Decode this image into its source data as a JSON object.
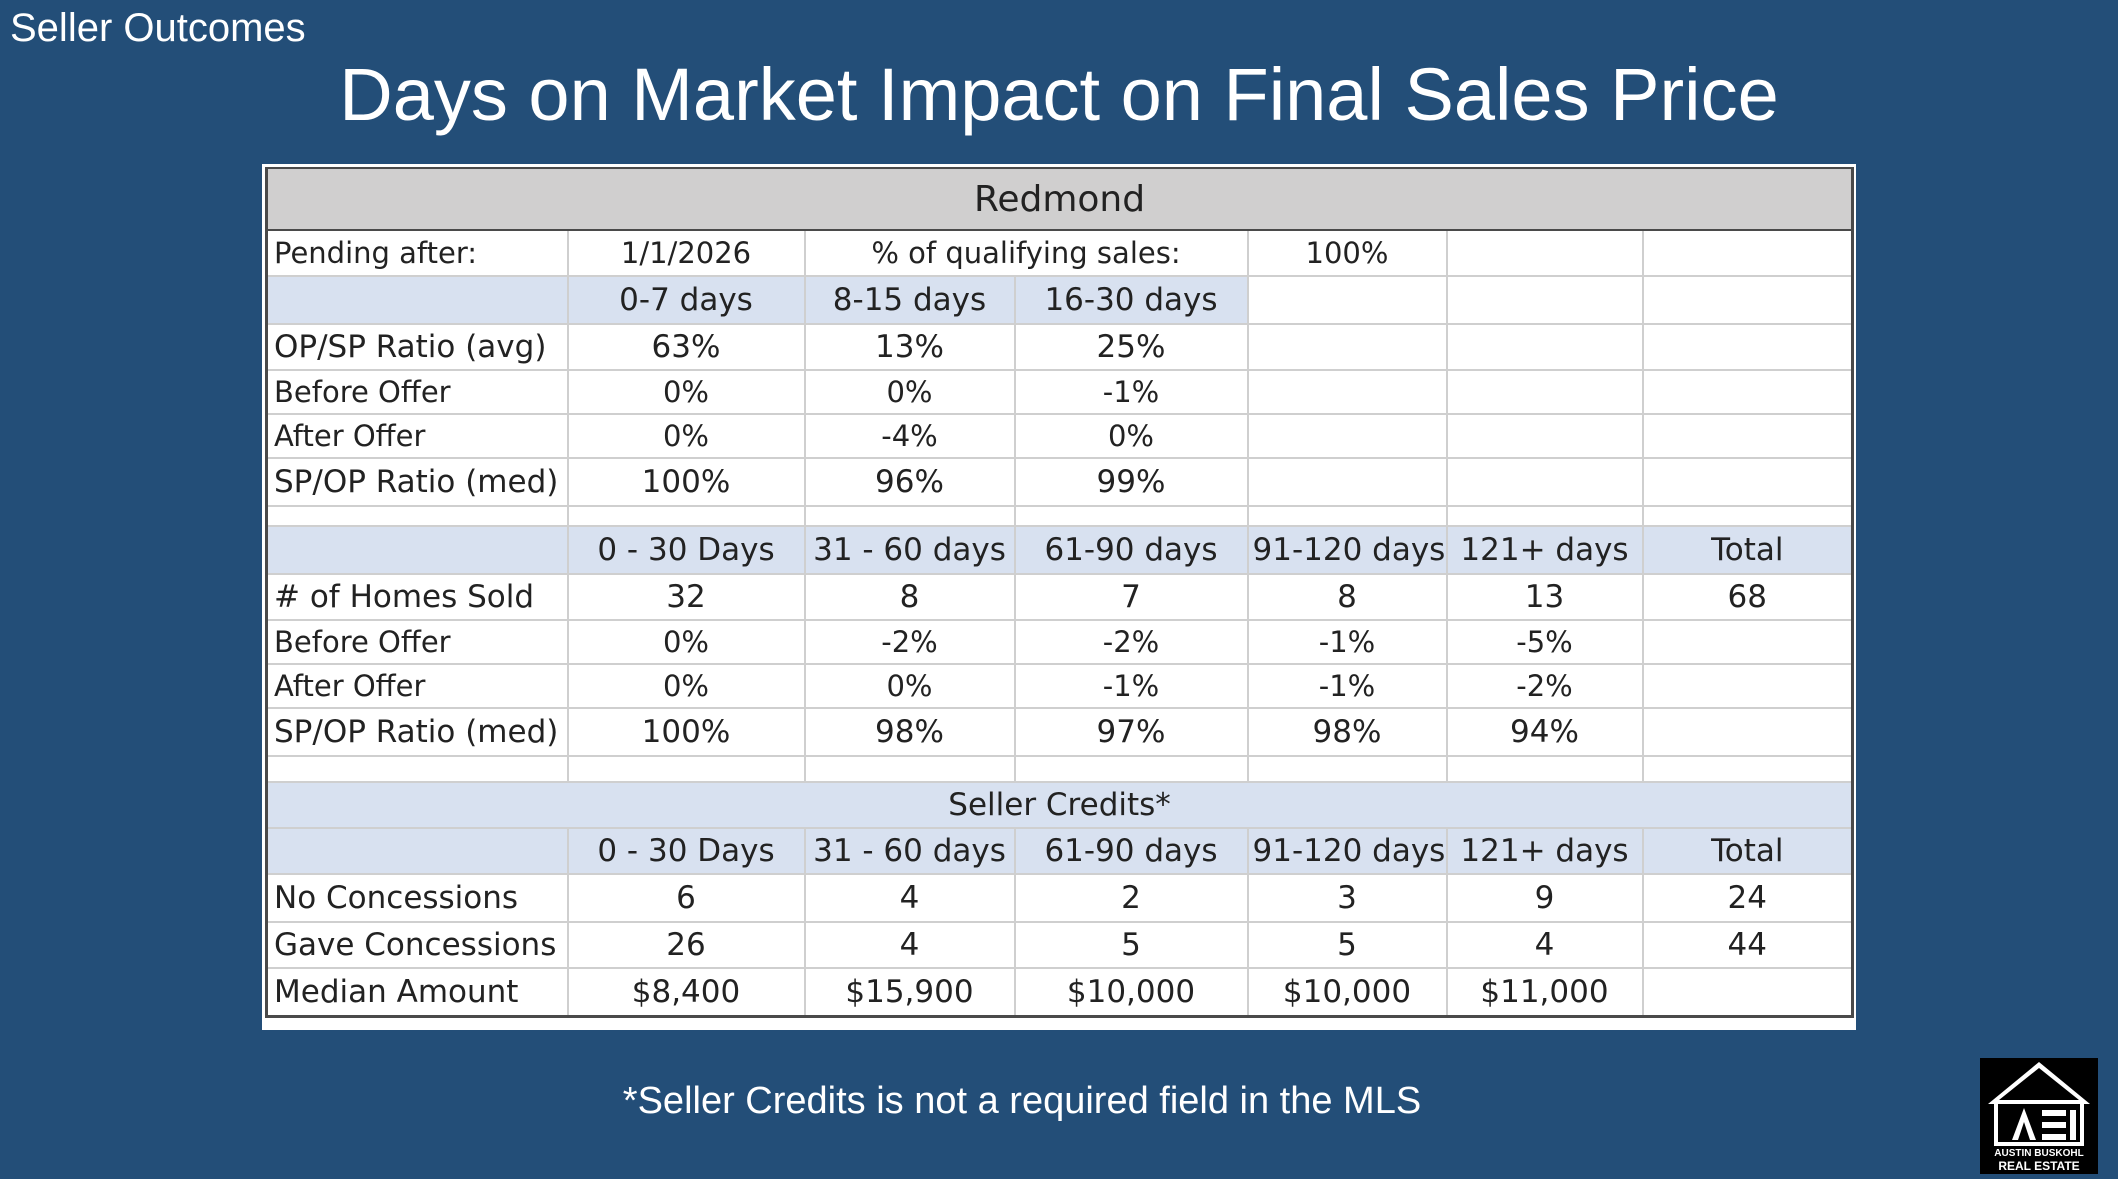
{
  "header": {
    "section_label": "Seller Outcomes",
    "title": "Days on Market Impact on Final Sales Price"
  },
  "table": {
    "title": "Redmond",
    "pending_label": "Pending after:",
    "pending_date": "1/1/2026",
    "qualifying_label": "% of qualifying sales:",
    "qualifying_value": "100%",
    "early_headers": [
      "0-7 days",
      "8-15 days",
      "16-30 days"
    ],
    "early_rows": [
      {
        "label": "OP/SP Ratio (avg)",
        "values": [
          "63%",
          "13%",
          "25%"
        ]
      },
      {
        "label": "Before Offer",
        "values": [
          "0%",
          "0%",
          "-1%"
        ]
      },
      {
        "label": "After Offer",
        "values": [
          "0%",
          "-4%",
          "0%"
        ]
      },
      {
        "label": "SP/OP Ratio (med)",
        "values": [
          "100%",
          "96%",
          "99%"
        ]
      }
    ],
    "range_headers": [
      "0 - 30 Days",
      "31 - 60 days",
      "61-90 days",
      "91-120 days",
      "121+ days",
      "Total"
    ],
    "range_rows": [
      {
        "label": "# of Homes Sold",
        "values": [
          "32",
          "8",
          "7",
          "8",
          "13",
          "68"
        ]
      },
      {
        "label": "Before Offer",
        "values": [
          "0%",
          "-2%",
          "-2%",
          "-1%",
          "-5%",
          ""
        ]
      },
      {
        "label": "After Offer",
        "values": [
          "0%",
          "0%",
          "-1%",
          "-1%",
          "-2%",
          ""
        ]
      },
      {
        "label": "SP/OP Ratio (med)",
        "values": [
          "100%",
          "98%",
          "97%",
          "98%",
          "94%",
          ""
        ]
      }
    ],
    "credits_title": "Seller Credits*",
    "credits_headers": [
      "0 - 30 Days",
      "31 - 60 days",
      "61-90 days",
      "91-120 days",
      "121+ days",
      "Total"
    ],
    "credits_rows": [
      {
        "label": "No Concessions",
        "values": [
          "6",
          "4",
          "2",
          "3",
          "9",
          "24"
        ]
      },
      {
        "label": "Gave Concessions",
        "values": [
          "26",
          "4",
          "5",
          "5",
          "4",
          "44"
        ]
      },
      {
        "label": "Median Amount",
        "values": [
          "$8,400",
          "$15,900",
          "$10,000",
          "$10,000",
          "$11,000",
          ""
        ]
      }
    ]
  },
  "footnote": "*Seller Credits is not a required field in the MLS",
  "logo": {
    "line1": "AUSTIN BUSKOHL",
    "line2": "REAL ESTATE",
    "icon": "house-icon"
  },
  "colors": {
    "background": "#234e78",
    "header_gray": "#d0cfcf",
    "row_blue": "#d8e1f0"
  }
}
